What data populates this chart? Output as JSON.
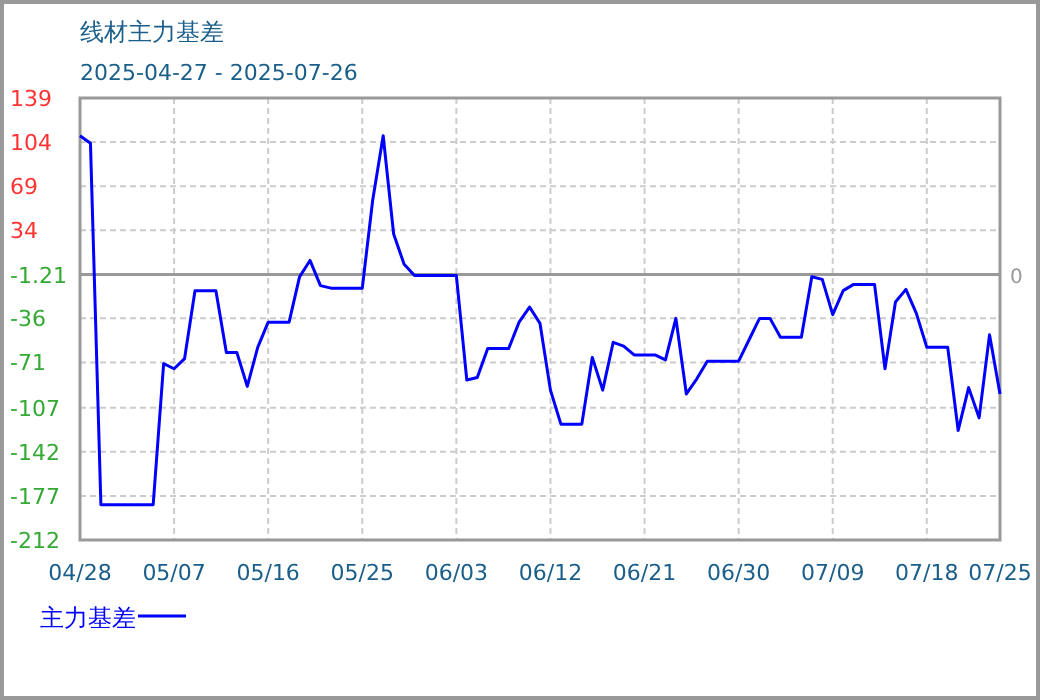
{
  "chart_data": {
    "type": "line",
    "title": "线材主力基差",
    "subtitle": "2025-04-27 - 2025-07-26",
    "x": [
      "2025-04-28",
      "2025-04-29",
      "2025-04-30",
      "2025-05-05",
      "2025-05-06",
      "2025-05-07",
      "2025-05-08",
      "2025-05-09",
      "2025-05-11",
      "2025-05-12",
      "2025-05-13",
      "2025-05-14",
      "2025-05-15",
      "2025-05-16",
      "2025-05-18",
      "2025-05-19",
      "2025-05-20",
      "2025-05-21",
      "2025-05-22",
      "2025-05-25",
      "2025-05-26",
      "2025-05-27",
      "2025-05-28",
      "2025-05-29",
      "2025-05-30",
      "2025-06-03",
      "2025-06-04",
      "2025-06-05",
      "2025-06-06",
      "2025-06-08",
      "2025-06-09",
      "2025-06-10",
      "2025-06-11",
      "2025-06-12",
      "2025-06-13",
      "2025-06-15",
      "2025-06-16",
      "2025-06-17",
      "2025-06-18",
      "2025-06-19",
      "2025-06-20",
      "2025-06-22",
      "2025-06-23",
      "2025-06-24",
      "2025-06-25",
      "2025-06-26",
      "2025-06-27",
      "2025-06-30",
      "2025-07-01",
      "2025-07-02",
      "2025-07-03",
      "2025-07-04",
      "2025-07-06",
      "2025-07-07",
      "2025-07-08",
      "2025-07-09",
      "2025-07-10",
      "2025-07-11",
      "2025-07-13",
      "2025-07-14",
      "2025-07-15",
      "2025-07-16",
      "2025-07-17",
      "2025-07-18",
      "2025-07-20",
      "2025-07-21",
      "2025-07-22",
      "2025-07-23",
      "2025-07-24",
      "2025-07-25"
    ],
    "series": [
      {
        "name": "主力基差",
        "color": "#0000ff",
        "values": [
          109,
          103,
          -184,
          -184,
          -72,
          -76,
          -68,
          -14,
          -14,
          -63,
          -63,
          -90,
          -59,
          -39,
          -39,
          -3,
          10,
          -10,
          -12,
          -12,
          58,
          109,
          31,
          7,
          -2,
          -2,
          -85,
          -83,
          -60,
          -60,
          -39,
          -27,
          -40,
          -93,
          -120,
          -120,
          -67,
          -93,
          -55,
          -58,
          -65,
          -65,
          -69,
          -36,
          -96,
          -84,
          -70,
          -70,
          -53,
          -36,
          -36,
          -51,
          -51,
          -3,
          -5,
          -33,
          -14,
          -9,
          -9,
          -76,
          -23,
          -13,
          -32,
          -59,
          -59,
          -125,
          -91,
          -115,
          -49,
          -96
        ]
      }
    ],
    "xlim": [
      "2025-04-28",
      "2025-07-25"
    ],
    "xticks": [
      {
        "value": "2025-04-28",
        "label": "04/28"
      },
      {
        "value": "2025-05-07",
        "label": "05/07"
      },
      {
        "value": "2025-05-16",
        "label": "05/16"
      },
      {
        "value": "2025-05-25",
        "label": "05/25"
      },
      {
        "value": "2025-06-03",
        "label": "06/03"
      },
      {
        "value": "2025-06-12",
        "label": "06/12"
      },
      {
        "value": "2025-06-21",
        "label": "06/21"
      },
      {
        "value": "2025-06-30",
        "label": "06/30"
      },
      {
        "value": "2025-07-09",
        "label": "07/09"
      },
      {
        "value": "2025-07-18",
        "label": "07/18"
      },
      {
        "value": "2025-07-25",
        "label": "07/25"
      }
    ],
    "ylim": [
      -212,
      139
    ],
    "yticks": [
      139,
      104,
      69,
      34,
      -1.21,
      -36,
      -71,
      -107,
      -142,
      -177,
      -212
    ],
    "ref_lines": [
      {
        "axis": "y",
        "value": -1.21,
        "color": "#999999"
      }
    ],
    "annotations": [
      "0"
    ],
    "grid": true,
    "legend": "bottom",
    "marker": "none",
    "line_style": "solid"
  }
}
